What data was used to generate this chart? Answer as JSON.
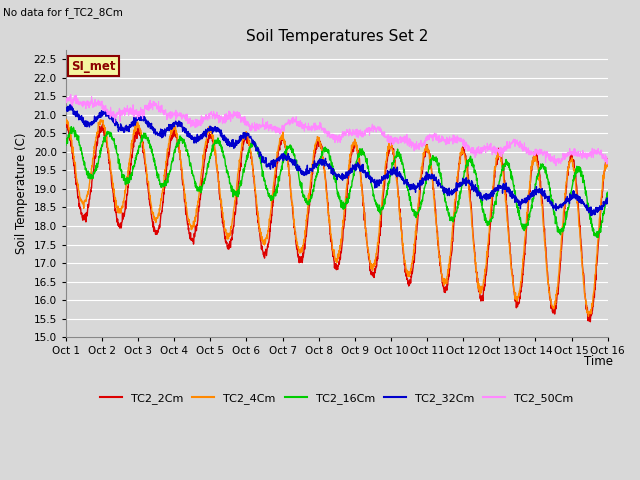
{
  "title": "Soil Temperatures Set 2",
  "subtitle": "No data for f_TC2_8Cm",
  "ylabel": "Soil Temperature (C)",
  "xlabel": "Time",
  "ylim": [
    15.0,
    22.75
  ],
  "yticks": [
    15.0,
    15.5,
    16.0,
    16.5,
    17.0,
    17.5,
    18.0,
    18.5,
    19.0,
    19.5,
    20.0,
    20.5,
    21.0,
    21.5,
    22.0,
    22.5
  ],
  "xtick_labels": [
    "Oct 1",
    "Oct 2",
    "Oct 3",
    "Oct 4",
    "Oct 5",
    "Oct 6",
    "Oct 7",
    "Oct 8",
    "Oct 9",
    "Oct 10",
    "Oct 11",
    "Oct 12",
    "Oct 13",
    "Oct 14",
    "Oct 15",
    "Oct 16"
  ],
  "annotation_text": "SI_met",
  "annotation_box_color": "#f5f5a0",
  "annotation_box_edge_color": "#8b0000",
  "annotation_text_color": "#8b0000",
  "bg_color": "#d8d8d8",
  "plot_bg_color": "#d8d8d8",
  "grid_color": "#ffffff",
  "series": {
    "TC2_2Cm": {
      "color": "#dd0000",
      "lw": 1.0
    },
    "TC2_4Cm": {
      "color": "#ff8800",
      "lw": 1.0
    },
    "TC2_16Cm": {
      "color": "#00cc00",
      "lw": 1.0
    },
    "TC2_32Cm": {
      "color": "#0000cc",
      "lw": 1.0
    },
    "TC2_50Cm": {
      "color": "#ff88ff",
      "lw": 0.8
    }
  },
  "n_points": 2000
}
